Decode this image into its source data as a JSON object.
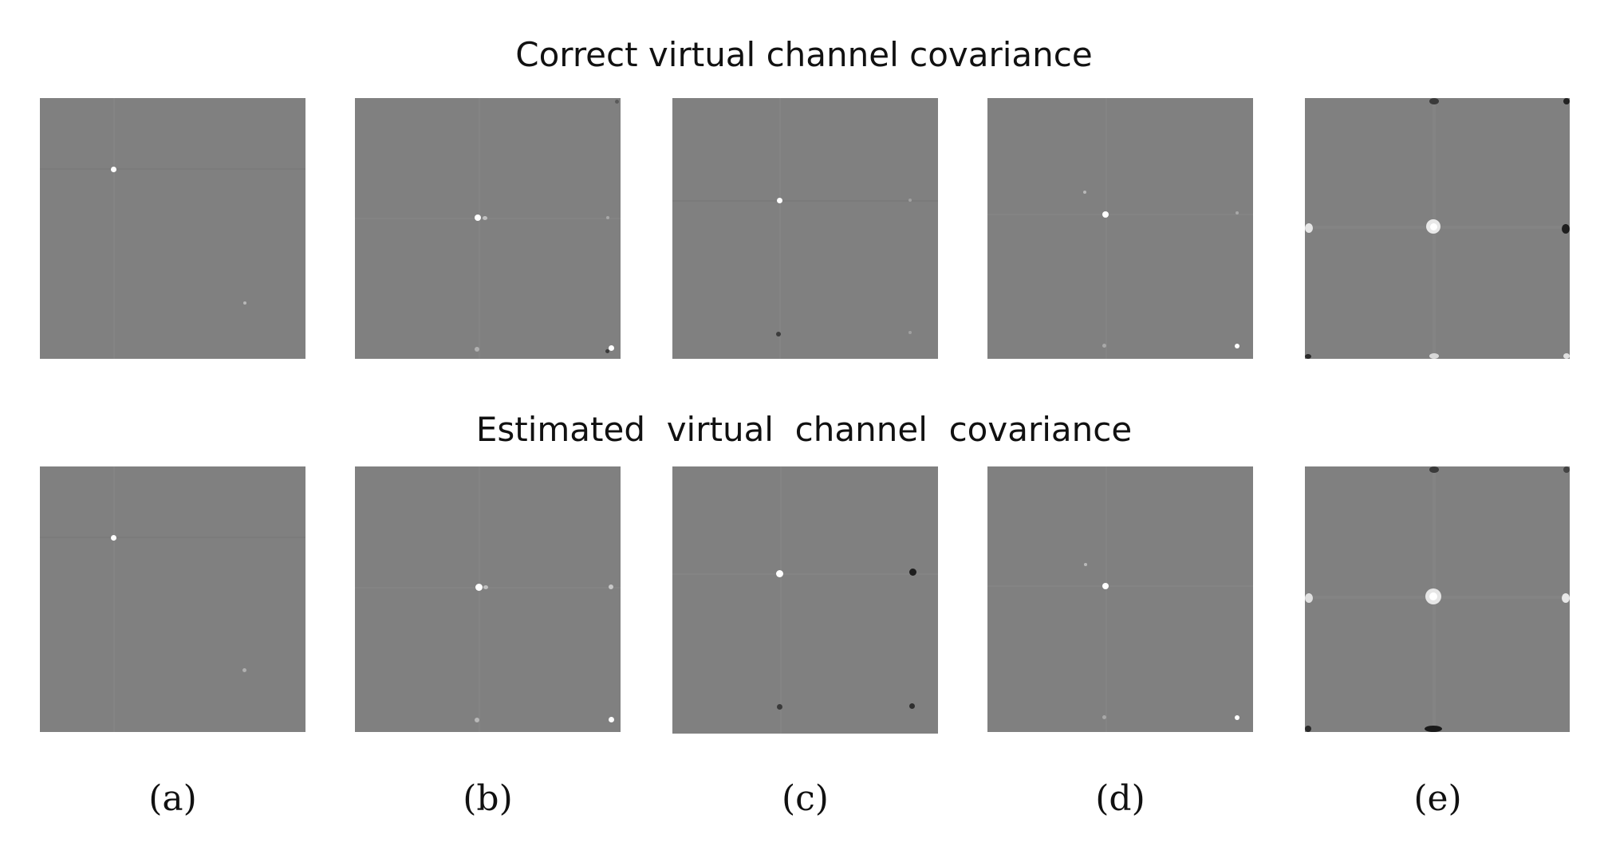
{
  "titles": {
    "top": "Correct virtual channel covariance",
    "bottom": "Estimated  virtual  channel  covariance"
  },
  "panels": [
    {
      "label": "(a)"
    },
    {
      "label": "(b)"
    },
    {
      "label": "(c)"
    },
    {
      "label": "(d)"
    },
    {
      "label": "(e)"
    }
  ],
  "colors": {
    "background": "#ffffff",
    "matrix_gray": "#808080"
  }
}
